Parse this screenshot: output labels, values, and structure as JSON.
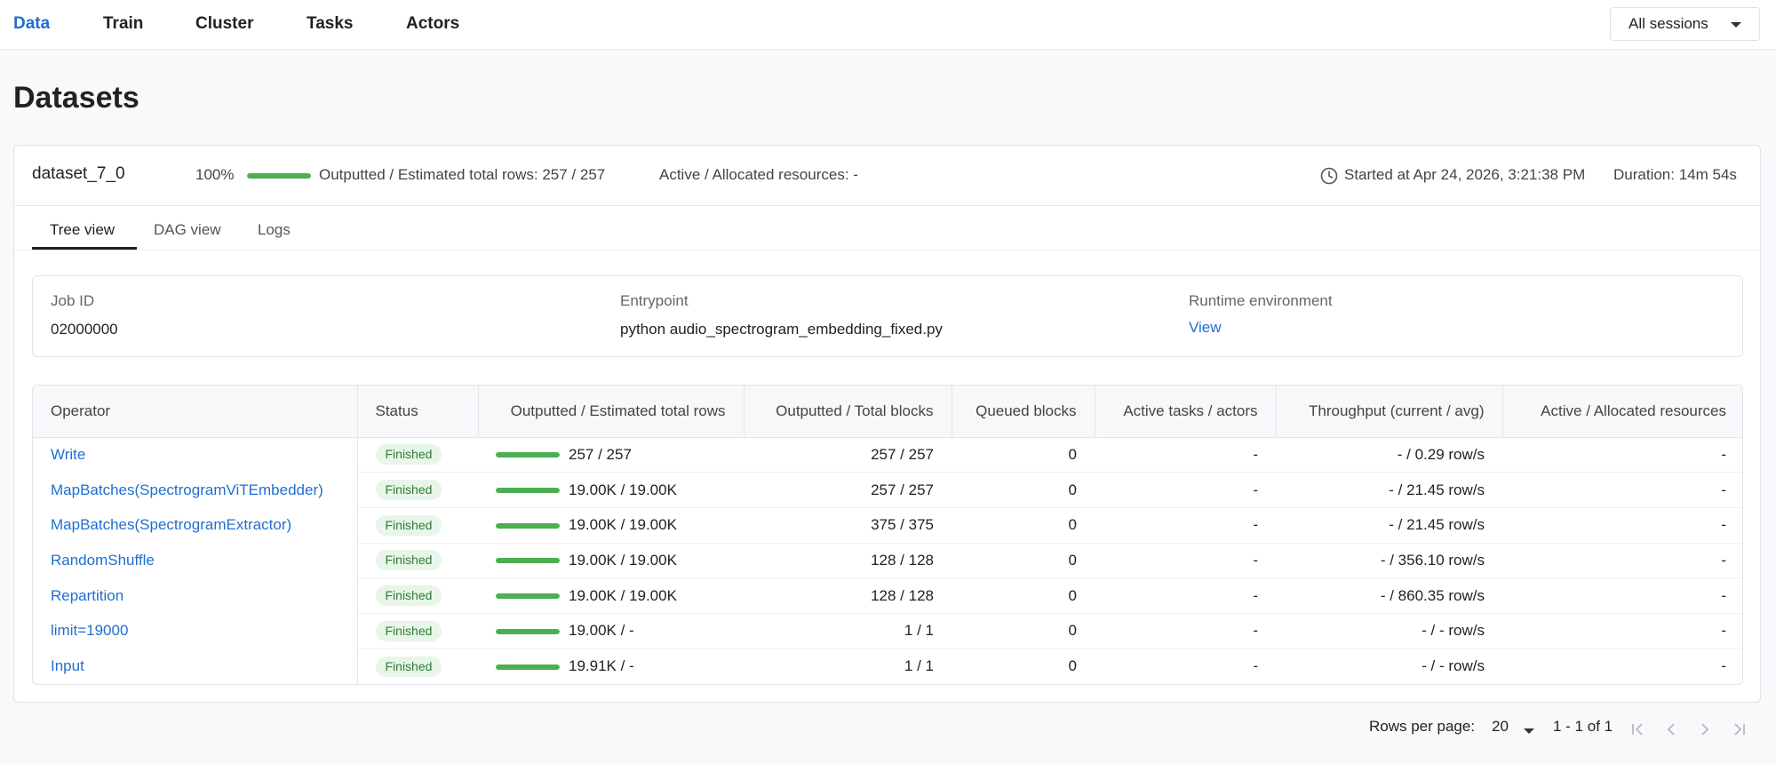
{
  "nav": {
    "items": [
      "Data",
      "Train",
      "Cluster",
      "Tasks",
      "Actors"
    ],
    "session_select": "All sessions"
  },
  "page_title": "Datasets",
  "dataset": {
    "name": "dataset_7_0",
    "progress_pct_text": "100%",
    "progress_fraction": 1.0,
    "rows_text": "Outputted / Estimated total rows: 257 / 257",
    "resources_text": "Active / Allocated resources: -",
    "started_text": "Started at Apr 24, 2026, 3:21:38 PM",
    "duration_text": "Duration: 14m 54s"
  },
  "tabs": [
    "Tree view",
    "DAG view",
    "Logs"
  ],
  "info": {
    "job_id_label": "Job ID",
    "job_id": "02000000",
    "entrypoint_label": "Entrypoint",
    "entrypoint": "python audio_spectrogram_embedding_fixed.py",
    "runtime_label": "Runtime environment",
    "runtime_link": "View"
  },
  "table": {
    "headers": [
      "Operator",
      "Status",
      "Outputted / Estimated total rows",
      "Outputted / Total blocks",
      "Queued blocks",
      "Active tasks / actors",
      "Throughput (current / avg)",
      "Active / Allocated resources"
    ],
    "rows": [
      {
        "operator": "Write",
        "status": "Finished",
        "progress": 1.0,
        "rows": "257 / 257",
        "blocks": "257 / 257",
        "queued": "0",
        "active": "-",
        "throughput": "- / 0.29 row/s",
        "resources": "-"
      },
      {
        "operator": "MapBatches(SpectrogramViTEmbedder)",
        "status": "Finished",
        "progress": 1.0,
        "rows": "19.00K / 19.00K",
        "blocks": "257 / 257",
        "queued": "0",
        "active": "-",
        "throughput": "- / 21.45 row/s",
        "resources": "-"
      },
      {
        "operator": "MapBatches(SpectrogramExtractor)",
        "status": "Finished",
        "progress": 1.0,
        "rows": "19.00K / 19.00K",
        "blocks": "375 / 375",
        "queued": "0",
        "active": "-",
        "throughput": "- / 21.45 row/s",
        "resources": "-"
      },
      {
        "operator": "RandomShuffle",
        "status": "Finished",
        "progress": 1.0,
        "rows": "19.00K / 19.00K",
        "blocks": "128 / 128",
        "queued": "0",
        "active": "-",
        "throughput": "- / 356.10 row/s",
        "resources": "-"
      },
      {
        "operator": "Repartition",
        "status": "Finished",
        "progress": 1.0,
        "rows": "19.00K / 19.00K",
        "blocks": "128 / 128",
        "queued": "0",
        "active": "-",
        "throughput": "- / 860.35 row/s",
        "resources": "-"
      },
      {
        "operator": "limit=19000",
        "status": "Finished",
        "progress": 1.0,
        "rows": "19.00K / -",
        "blocks": "1 / 1",
        "queued": "0",
        "active": "-",
        "throughput": "- / - row/s",
        "resources": "-"
      },
      {
        "operator": "Input",
        "status": "Finished",
        "progress": 1.0,
        "rows": "19.91K / -",
        "blocks": "1 / 1",
        "queued": "0",
        "active": "-",
        "throughput": "- / - row/s",
        "resources": "-"
      }
    ]
  },
  "pagination": {
    "rows_per_page_label": "Rows per page:",
    "rows_per_page": "20",
    "range": "1 - 1 of 1"
  },
  "colors": {
    "accent": "#1f6fcf",
    "progress": "#4caf50",
    "badge_bg": "#e8f5e9",
    "badge_text": "#2e7d32"
  },
  "icons": {
    "clock": "clock-icon",
    "first_page": "first-page-icon",
    "prev_page": "chevron-left-icon",
    "next_page": "chevron-right-icon",
    "last_page": "last-page-icon"
  }
}
